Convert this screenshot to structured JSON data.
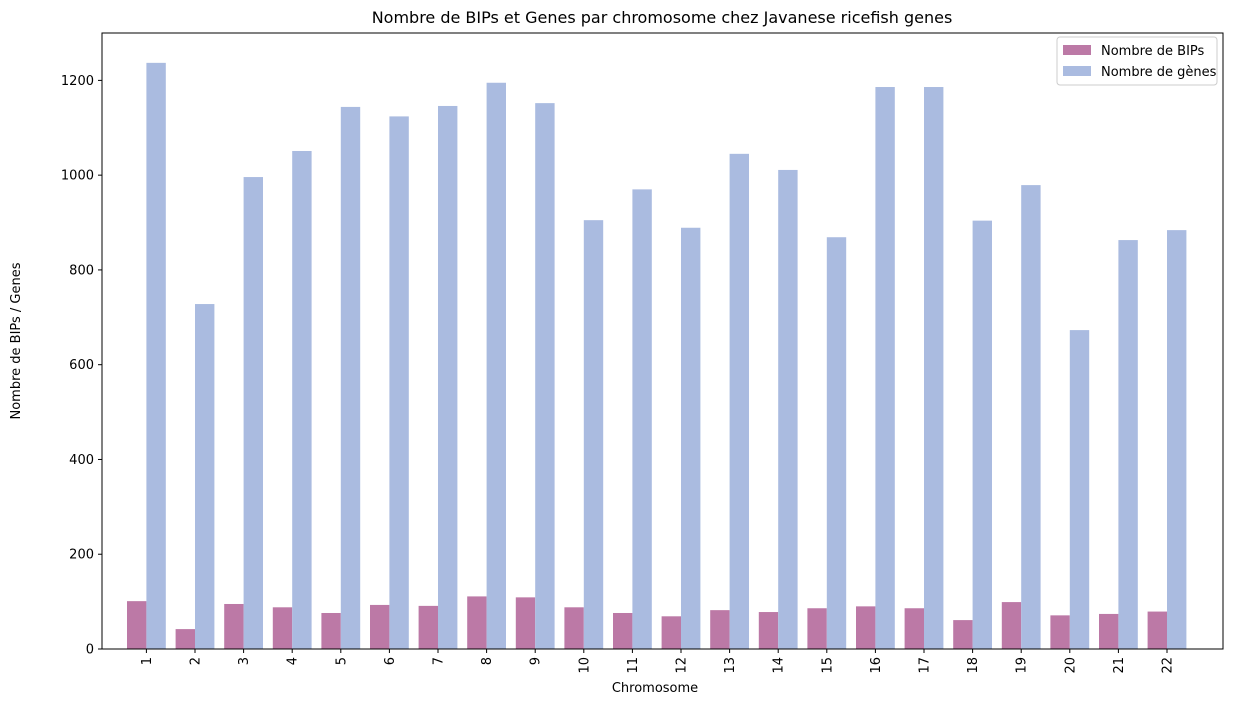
{
  "chart_data": {
    "type": "bar",
    "title": "Nombre de BIPs et Genes par chromosome chez Javanese ricefish genes",
    "xlabel": "Chromosome",
    "ylabel": "Nombre de BIPs / Genes",
    "categories": [
      "1",
      "2",
      "3",
      "4",
      "5",
      "6",
      "7",
      "8",
      "9",
      "10",
      "11",
      "12",
      "13",
      "14",
      "15",
      "16",
      "17",
      "18",
      "19",
      "20",
      "21",
      "22"
    ],
    "ylim": [
      0,
      1300
    ],
    "yticks": [
      0,
      200,
      400,
      600,
      800,
      1000,
      1200
    ],
    "grid": false,
    "legend_position": "top-right",
    "series": [
      {
        "name": "Nombre de BIPs",
        "color": "#bc79a6",
        "values": [
          101,
          42,
          95,
          88,
          76,
          93,
          91,
          111,
          109,
          88,
          76,
          69,
          82,
          78,
          86,
          90,
          86,
          61,
          99,
          71,
          74,
          79
        ]
      },
      {
        "name": "Nombre de gènes",
        "color": "#aabbe0",
        "values": [
          1237,
          728,
          996,
          1051,
          1144,
          1124,
          1146,
          1195,
          1152,
          905,
          970,
          889,
          1045,
          1011,
          869,
          1186,
          1186,
          904,
          979,
          673,
          863,
          884
        ]
      }
    ]
  }
}
